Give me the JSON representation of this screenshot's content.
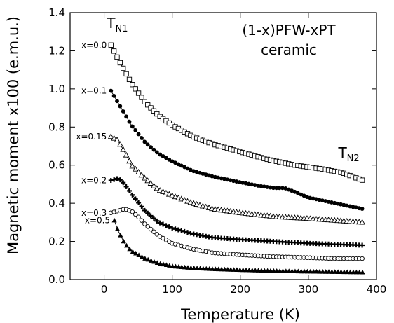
{
  "chart_data": {
    "type": "scatter",
    "title": "(1-x)PFW-xPT",
    "subtitle": "ceramic",
    "xlabel": "Temperature (K)",
    "ylabel": "Magnetic moment x100 (e.m.u.)",
    "xlim": [
      -50,
      400
    ],
    "ylim": [
      0,
      1.4
    ],
    "x_ticks": [
      0,
      100,
      200,
      300,
      400
    ],
    "y_ticks": [
      0.0,
      0.2,
      0.4,
      0.6,
      0.8,
      1.0,
      1.2,
      1.4
    ],
    "y_tick_labels": [
      "0.0",
      "0.2",
      "0.4",
      "0.6",
      "0.8",
      "1.0",
      "1.2",
      "1.4"
    ],
    "grid": false,
    "annotations": [
      {
        "text": "T",
        "sub": "N1",
        "x": 10,
        "y": 1.32
      },
      {
        "text": "T",
        "sub": "N2",
        "x": 350,
        "y": 0.64
      }
    ],
    "series": [
      {
        "name": "x=0.0",
        "marker": "open-square",
        "color": "#000000",
        "x": [
          10,
          20,
          40,
          60,
          80,
          100,
          130,
          160,
          200,
          240,
          280,
          320,
          350,
          380
        ],
        "y": [
          1.23,
          1.16,
          1.03,
          0.93,
          0.86,
          0.81,
          0.75,
          0.71,
          0.67,
          0.63,
          0.6,
          0.58,
          0.56,
          0.52
        ]
      },
      {
        "name": "x=0.1",
        "marker": "filled-circle",
        "color": "#000000",
        "x": [
          10,
          20,
          40,
          60,
          80,
          100,
          130,
          160,
          200,
          230,
          250,
          265,
          280,
          300,
          340,
          380
        ],
        "y": [
          0.99,
          0.93,
          0.81,
          0.72,
          0.66,
          0.62,
          0.57,
          0.54,
          0.51,
          0.49,
          0.48,
          0.48,
          0.46,
          0.43,
          0.4,
          0.37
        ]
      },
      {
        "name": "x=0.15",
        "marker": "open-triangle",
        "color": "#000000",
        "x": [
          10,
          20,
          30,
          40,
          60,
          80,
          100,
          130,
          160,
          200,
          250,
          300,
          340,
          380
        ],
        "y": [
          0.75,
          0.73,
          0.67,
          0.6,
          0.53,
          0.47,
          0.44,
          0.4,
          0.37,
          0.35,
          0.33,
          0.32,
          0.31,
          0.3
        ]
      },
      {
        "name": "x=0.2",
        "marker": "plus",
        "color": "#000000",
        "x": [
          10,
          20,
          25,
          30,
          40,
          60,
          80,
          100,
          130,
          160,
          200,
          250,
          300,
          340,
          380
        ],
        "y": [
          0.52,
          0.53,
          0.52,
          0.5,
          0.45,
          0.36,
          0.3,
          0.27,
          0.24,
          0.22,
          0.21,
          0.2,
          0.19,
          0.185,
          0.18
        ]
      },
      {
        "name": "x=0.3",
        "marker": "open-circle",
        "color": "#000000",
        "x": [
          10,
          20,
          30,
          40,
          50,
          60,
          80,
          100,
          130,
          160,
          200,
          250,
          300,
          340,
          380
        ],
        "y": [
          0.35,
          0.36,
          0.37,
          0.36,
          0.33,
          0.29,
          0.23,
          0.19,
          0.16,
          0.14,
          0.13,
          0.12,
          0.115,
          0.11,
          0.11
        ]
      },
      {
        "name": "x=0.5",
        "marker": "filled-triangle",
        "color": "#000000",
        "x": [
          15,
          20,
          30,
          40,
          60,
          80,
          100,
          130,
          160,
          200,
          250,
          300,
          340,
          380
        ],
        "y": [
          0.31,
          0.26,
          0.19,
          0.15,
          0.11,
          0.085,
          0.07,
          0.06,
          0.055,
          0.05,
          0.045,
          0.042,
          0.04,
          0.038
        ]
      }
    ]
  }
}
